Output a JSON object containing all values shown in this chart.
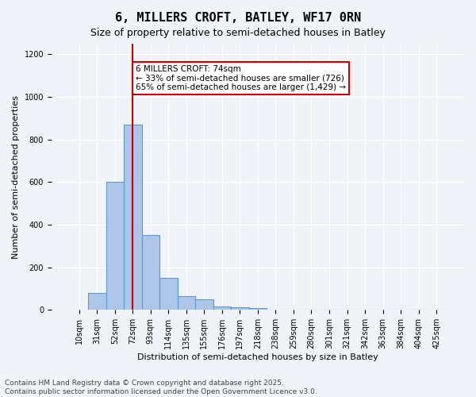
{
  "title": "6, MILLERS CROFT, BATLEY, WF17 0RN",
  "subtitle": "Size of property relative to semi-detached houses in Batley",
  "xlabel": "Distribution of semi-detached houses by size in Batley",
  "ylabel": "Number of semi-detached properties",
  "categories": [
    "10sqm",
    "31sqm",
    "52sqm",
    "72sqm",
    "93sqm",
    "114sqm",
    "135sqm",
    "155sqm",
    "176sqm",
    "197sqm",
    "218sqm",
    "238sqm",
    "259sqm",
    "280sqm",
    "301sqm",
    "321sqm",
    "342sqm",
    "363sqm",
    "384sqm",
    "404sqm",
    "425sqm"
  ],
  "values": [
    0,
    80,
    600,
    870,
    350,
    150,
    65,
    50,
    18,
    13,
    10,
    0,
    0,
    0,
    0,
    0,
    0,
    0,
    0,
    0,
    0
  ],
  "bar_color": "#aec6e8",
  "bar_edgecolor": "#5b9bd5",
  "bar_linewidth": 0.8,
  "vline_x": 3,
  "vline_color": "#cc0000",
  "vline_label": "6 MILLERS CROFT: 74sqm",
  "annotation_line1": "6 MILLERS CROFT: 74sqm",
  "annotation_line2": "← 33% of semi-detached houses are smaller (726)",
  "annotation_line3": "65% of semi-detached houses are larger (1,429) →",
  "box_edgecolor": "#cc0000",
  "ylim": [
    0,
    1250
  ],
  "yticks": [
    0,
    200,
    400,
    600,
    800,
    1000,
    1200
  ],
  "footer1": "Contains HM Land Registry data © Crown copyright and database right 2025.",
  "footer2": "Contains public sector information licensed under the Open Government Licence v3.0.",
  "bg_color": "#f0f4f8",
  "plot_bg_color": "#f0f4f8",
  "title_fontsize": 11,
  "subtitle_fontsize": 9,
  "axis_label_fontsize": 8,
  "tick_fontsize": 7,
  "annotation_fontsize": 7.5,
  "footer_fontsize": 6.5
}
